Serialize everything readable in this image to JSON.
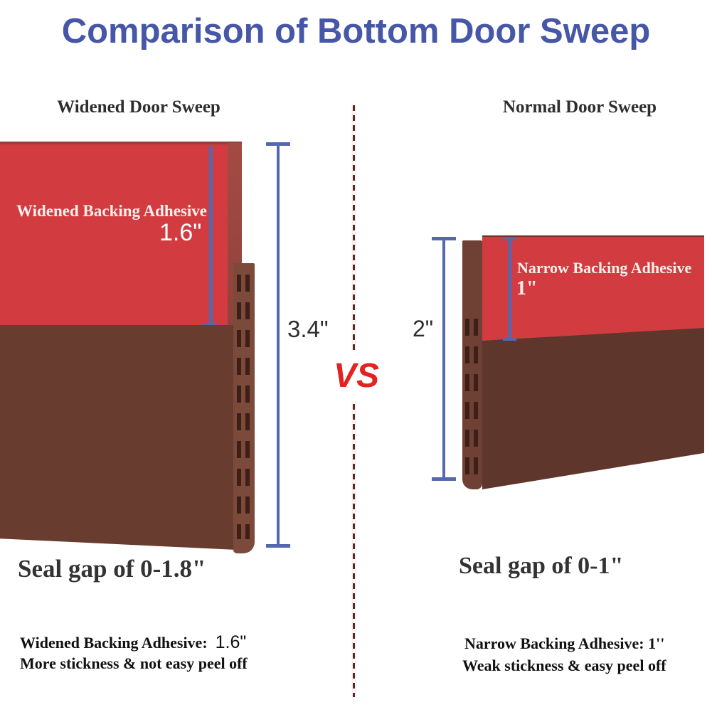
{
  "title": "Comparison of Bottom Door Sweep",
  "divider": {
    "vs": "VS"
  },
  "left": {
    "heading": "Widened Door Sweep",
    "adhesive_label": "Widened Backing Adhesive",
    "adhesive_width": "1.6\"",
    "total_height": "3.4\"",
    "seal_gap": "Seal gap of 0-1.8\"",
    "footer_label": "Widened Backing Adhesive:",
    "footer_value": "1.6\"",
    "footer_note": "More stickness & not easy peel off"
  },
  "right": {
    "heading": "Normal Door Sweep",
    "adhesive_label": "Narrow Backing Adhesive",
    "adhesive_width": "1\"",
    "total_height": "2\"",
    "seal_gap": "Seal gap of 0-1\"",
    "footer_label": "Narrow Backing Adhesive:",
    "footer_value": "1''",
    "footer_note": "Weak stickness & easy peel off"
  },
  "colors": {
    "title_blue": "#4757A7",
    "measure_blue": "#5568AE",
    "adhesive_red": "#D23C40",
    "sweep_brown": "#683C2F",
    "strip_brown": "#7B4A3B",
    "vs_red": "#E32221"
  }
}
